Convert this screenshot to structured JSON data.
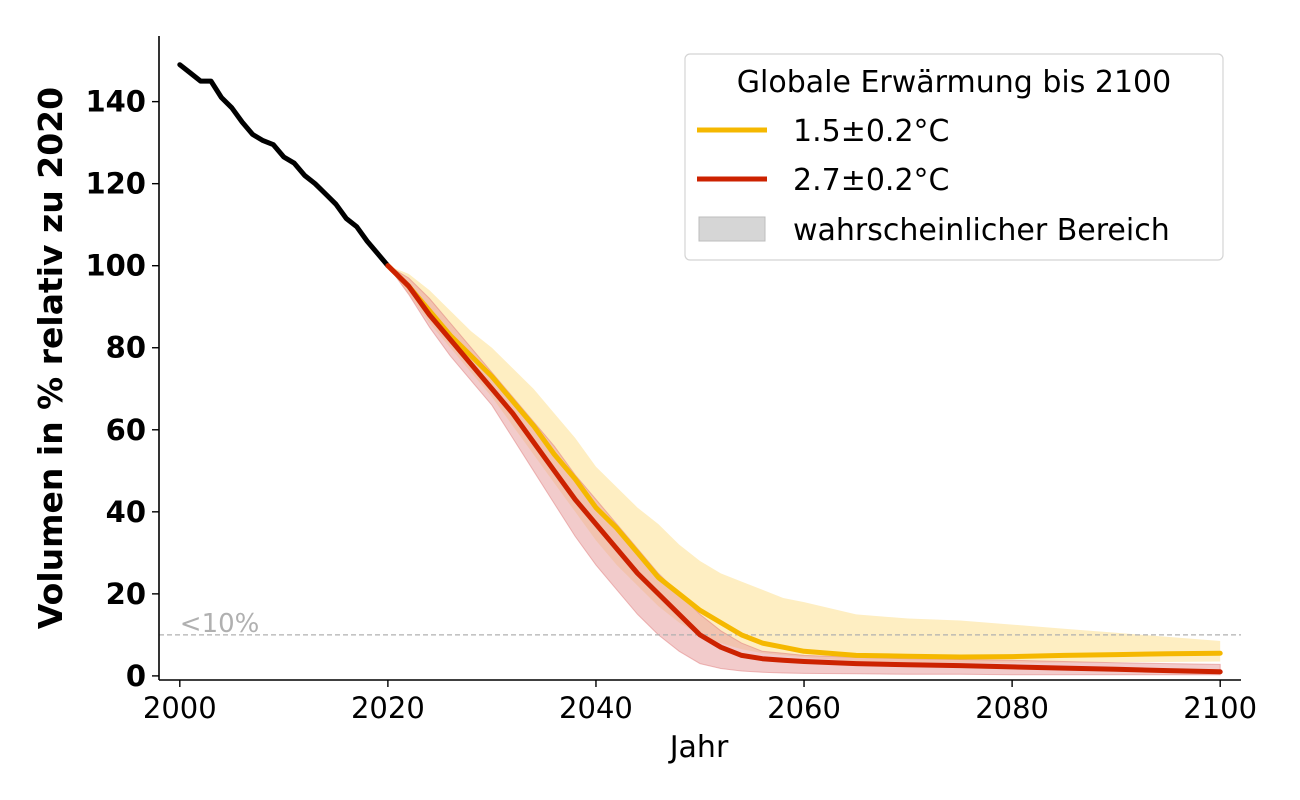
{
  "chart_data": {
    "type": "line",
    "title": "",
    "xlabel": "Jahr",
    "ylabel": "Volumen in % relativ zu 2020",
    "xlim": [
      1998,
      2102
    ],
    "ylim": [
      -1,
      156
    ],
    "x_ticks": [
      "2000",
      "2020",
      "2040",
      "2060",
      "2080",
      "2100"
    ],
    "y_ticks": [
      "0",
      "20",
      "40",
      "60",
      "80",
      "100",
      "120",
      "140"
    ],
    "grid": false,
    "legend": {
      "title": "Globale Erwärmung bis 2100",
      "placement": "top-right",
      "entries": [
        "1.5±0.2°C",
        "2.7±0.2°C",
        "wahrscheinlicher Bereich"
      ]
    },
    "threshold": {
      "y": 10,
      "label": "<10%",
      "color": "#b0b0b0"
    },
    "colors": {
      "historical": "#000000",
      "scenario_15": "#f5b800",
      "scenario_27": "#cc2200",
      "range_15": "#fde8ad",
      "range_27": "#e8a0a0",
      "legend_patch": "#d6d6d6"
    },
    "series": [
      {
        "key": "historical",
        "x": [
          2000,
          2001,
          2002,
          2003,
          2004,
          2005,
          2006,
          2007,
          2008,
          2009,
          2010,
          2011,
          2012,
          2013,
          2014,
          2015,
          2016,
          2017,
          2018,
          2019,
          2020
        ],
        "values": [
          149,
          147,
          145,
          145,
          141,
          138.5,
          135,
          132,
          130.5,
          129.5,
          126.5,
          125,
          122,
          120,
          117.5,
          115,
          111.5,
          109.5,
          106,
          103,
          100
        ]
      },
      {
        "key": "scenario_15",
        "name": "1.5±0.2°C",
        "x": [
          2020,
          2022,
          2024,
          2026,
          2028,
          2030,
          2032,
          2034,
          2036,
          2038,
          2040,
          2042,
          2044,
          2046,
          2048,
          2050,
          2052,
          2054,
          2056,
          2058,
          2060,
          2065,
          2070,
          2075,
          2080,
          2085,
          2090,
          2095,
          2100
        ],
        "values": [
          100,
          95,
          89,
          83,
          78,
          73,
          67,
          61,
          54,
          48,
          41,
          36,
          30,
          24,
          20,
          16,
          13,
          10,
          8,
          7,
          6,
          5,
          4.8,
          4.6,
          4.7,
          5,
          5.2,
          5.4,
          5.5
        ],
        "lower": [
          100,
          93,
          86,
          80,
          74,
          68,
          61,
          54,
          47,
          40,
          33,
          27,
          22,
          17,
          13,
          10,
          8,
          6.5,
          5.5,
          5,
          4.5,
          3.5,
          3.3,
          3.2,
          3.2,
          3.2,
          3.3,
          3.4,
          3.5
        ],
        "upper": [
          100,
          98,
          94,
          89,
          84,
          80,
          75,
          70,
          64,
          58,
          51,
          46,
          41,
          37,
          32,
          28,
          25,
          23,
          21,
          19,
          18,
          15,
          14,
          13.5,
          12.5,
          11.5,
          10.5,
          9.5,
          8.5
        ]
      },
      {
        "key": "scenario_27",
        "name": "2.7±0.2°C",
        "x": [
          2020,
          2022,
          2024,
          2026,
          2028,
          2030,
          2032,
          2034,
          2036,
          2038,
          2040,
          2042,
          2044,
          2046,
          2048,
          2050,
          2052,
          2054,
          2056,
          2058,
          2060,
          2065,
          2070,
          2075,
          2080,
          2085,
          2090,
          2095,
          2100
        ],
        "values": [
          100,
          95,
          88,
          82,
          76,
          70,
          64,
          57,
          50,
          43,
          37,
          31,
          25,
          20,
          15,
          10,
          7,
          5,
          4.2,
          3.8,
          3.5,
          3,
          2.7,
          2.5,
          2.2,
          1.9,
          1.6,
          1.3,
          1
        ],
        "lower": [
          100,
          93,
          85,
          78,
          72,
          66,
          58,
          50,
          42,
          34,
          27,
          21,
          15,
          10,
          6,
          3,
          1.8,
          1.2,
          0.9,
          0.7,
          0.6,
          0.5,
          0.4,
          0.4,
          0.3,
          0.3,
          0.3,
          0.3,
          0.3
        ],
        "upper": [
          100,
          97,
          92,
          86,
          80,
          74,
          68,
          62,
          56,
          49,
          43,
          37,
          31,
          25,
          20,
          15,
          11,
          8,
          6,
          5.5,
          5,
          4.5,
          4.2,
          4,
          3.8,
          3.5,
          3.2,
          3,
          2.8
        ]
      }
    ]
  }
}
